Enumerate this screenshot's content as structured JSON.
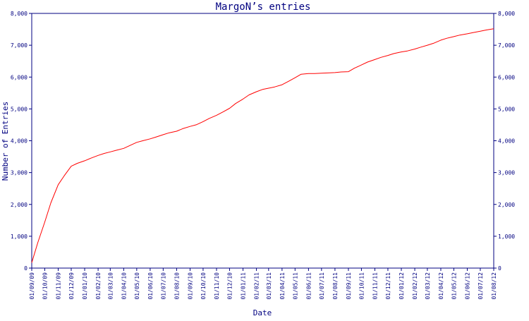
{
  "chart_data": {
    "type": "line",
    "title": "MargoN’s entries",
    "xlabel": "Date",
    "ylabel": "Number of Entries",
    "ylim": [
      0,
      8000
    ],
    "y_ticks": [
      "0",
      "1,000",
      "2,000",
      "3,000",
      "4,000",
      "5,000",
      "6,000",
      "7,000",
      "8,000"
    ],
    "y_tick_values": [
      0,
      1000,
      2000,
      3000,
      4000,
      5000,
      6000,
      7000,
      8000
    ],
    "x_ticks": [
      "01/09/09",
      "01/10/09",
      "01/11/09",
      "01/12/09",
      "01/01/10",
      "01/02/10",
      "01/03/10",
      "01/04/10",
      "01/05/10",
      "01/06/10",
      "01/07/10",
      "01/08/10",
      "01/09/10",
      "01/10/10",
      "01/11/10",
      "01/12/10",
      "01/01/11",
      "01/02/11",
      "01/03/11",
      "01/04/11",
      "01/05/11",
      "01/06/11",
      "01/07/11",
      "01/08/11",
      "01/09/11",
      "01/10/11",
      "01/11/11",
      "01/12/11",
      "01/01/12",
      "01/02/12",
      "01/03/12",
      "01/04/12",
      "01/05/12",
      "01/06/12",
      "01/07/12",
      "01/08/12"
    ],
    "grid": false,
    "line_color": "#ff0000",
    "axis_color": "#000080",
    "series": [
      {
        "x": [
          "01/09/09",
          "15/09/09",
          "01/10/09",
          "15/10/09",
          "01/11/09",
          "15/11/09",
          "01/12/09",
          "15/12/09",
          "01/01/10",
          "15/01/10",
          "01/02/10",
          "15/02/10",
          "01/03/10",
          "15/03/10",
          "01/04/10",
          "15/04/10",
          "01/05/10",
          "15/05/10",
          "01/06/10",
          "15/06/10",
          "01/07/10",
          "15/07/10",
          "01/08/10",
          "15/08/10",
          "01/09/10",
          "15/09/10",
          "01/10/10",
          "15/10/10",
          "01/11/10",
          "15/11/10",
          "01/12/10",
          "15/12/10",
          "01/01/11",
          "15/01/11",
          "01/02/11",
          "15/02/11",
          "01/03/11",
          "15/03/11",
          "01/04/11",
          "15/04/11",
          "01/05/11",
          "15/05/11",
          "01/06/11",
          "15/06/11",
          "01/07/11",
          "15/07/11",
          "01/08/11",
          "15/08/11",
          "01/09/11",
          "15/09/11",
          "01/10/11",
          "15/10/11",
          "01/11/11",
          "15/11/11",
          "01/12/11",
          "15/12/11",
          "01/01/12",
          "15/01/12",
          "01/02/12",
          "15/02/12",
          "01/03/12",
          "15/03/12",
          "01/04/12",
          "15/04/12",
          "01/05/12",
          "15/05/12",
          "01/06/12",
          "15/06/12",
          "01/07/12",
          "15/07/12",
          "01/08/12"
        ],
        "values": [
          170,
          800,
          1450,
          2050,
          2620,
          2900,
          3200,
          3290,
          3370,
          3450,
          3540,
          3600,
          3650,
          3700,
          3760,
          3850,
          3950,
          4000,
          4060,
          4120,
          4190,
          4250,
          4300,
          4380,
          4450,
          4500,
          4600,
          4700,
          4800,
          4900,
          5020,
          5170,
          5310,
          5440,
          5540,
          5610,
          5650,
          5690,
          5760,
          5860,
          5980,
          6090,
          6110,
          6110,
          6120,
          6130,
          6140,
          6160,
          6170,
          6280,
          6380,
          6470,
          6550,
          6620,
          6680,
          6740,
          6790,
          6820,
          6880,
          6940,
          7000,
          7060,
          7160,
          7220,
          7270,
          7320,
          7360,
          7400,
          7440,
          7480,
          7520
        ]
      }
    ]
  }
}
